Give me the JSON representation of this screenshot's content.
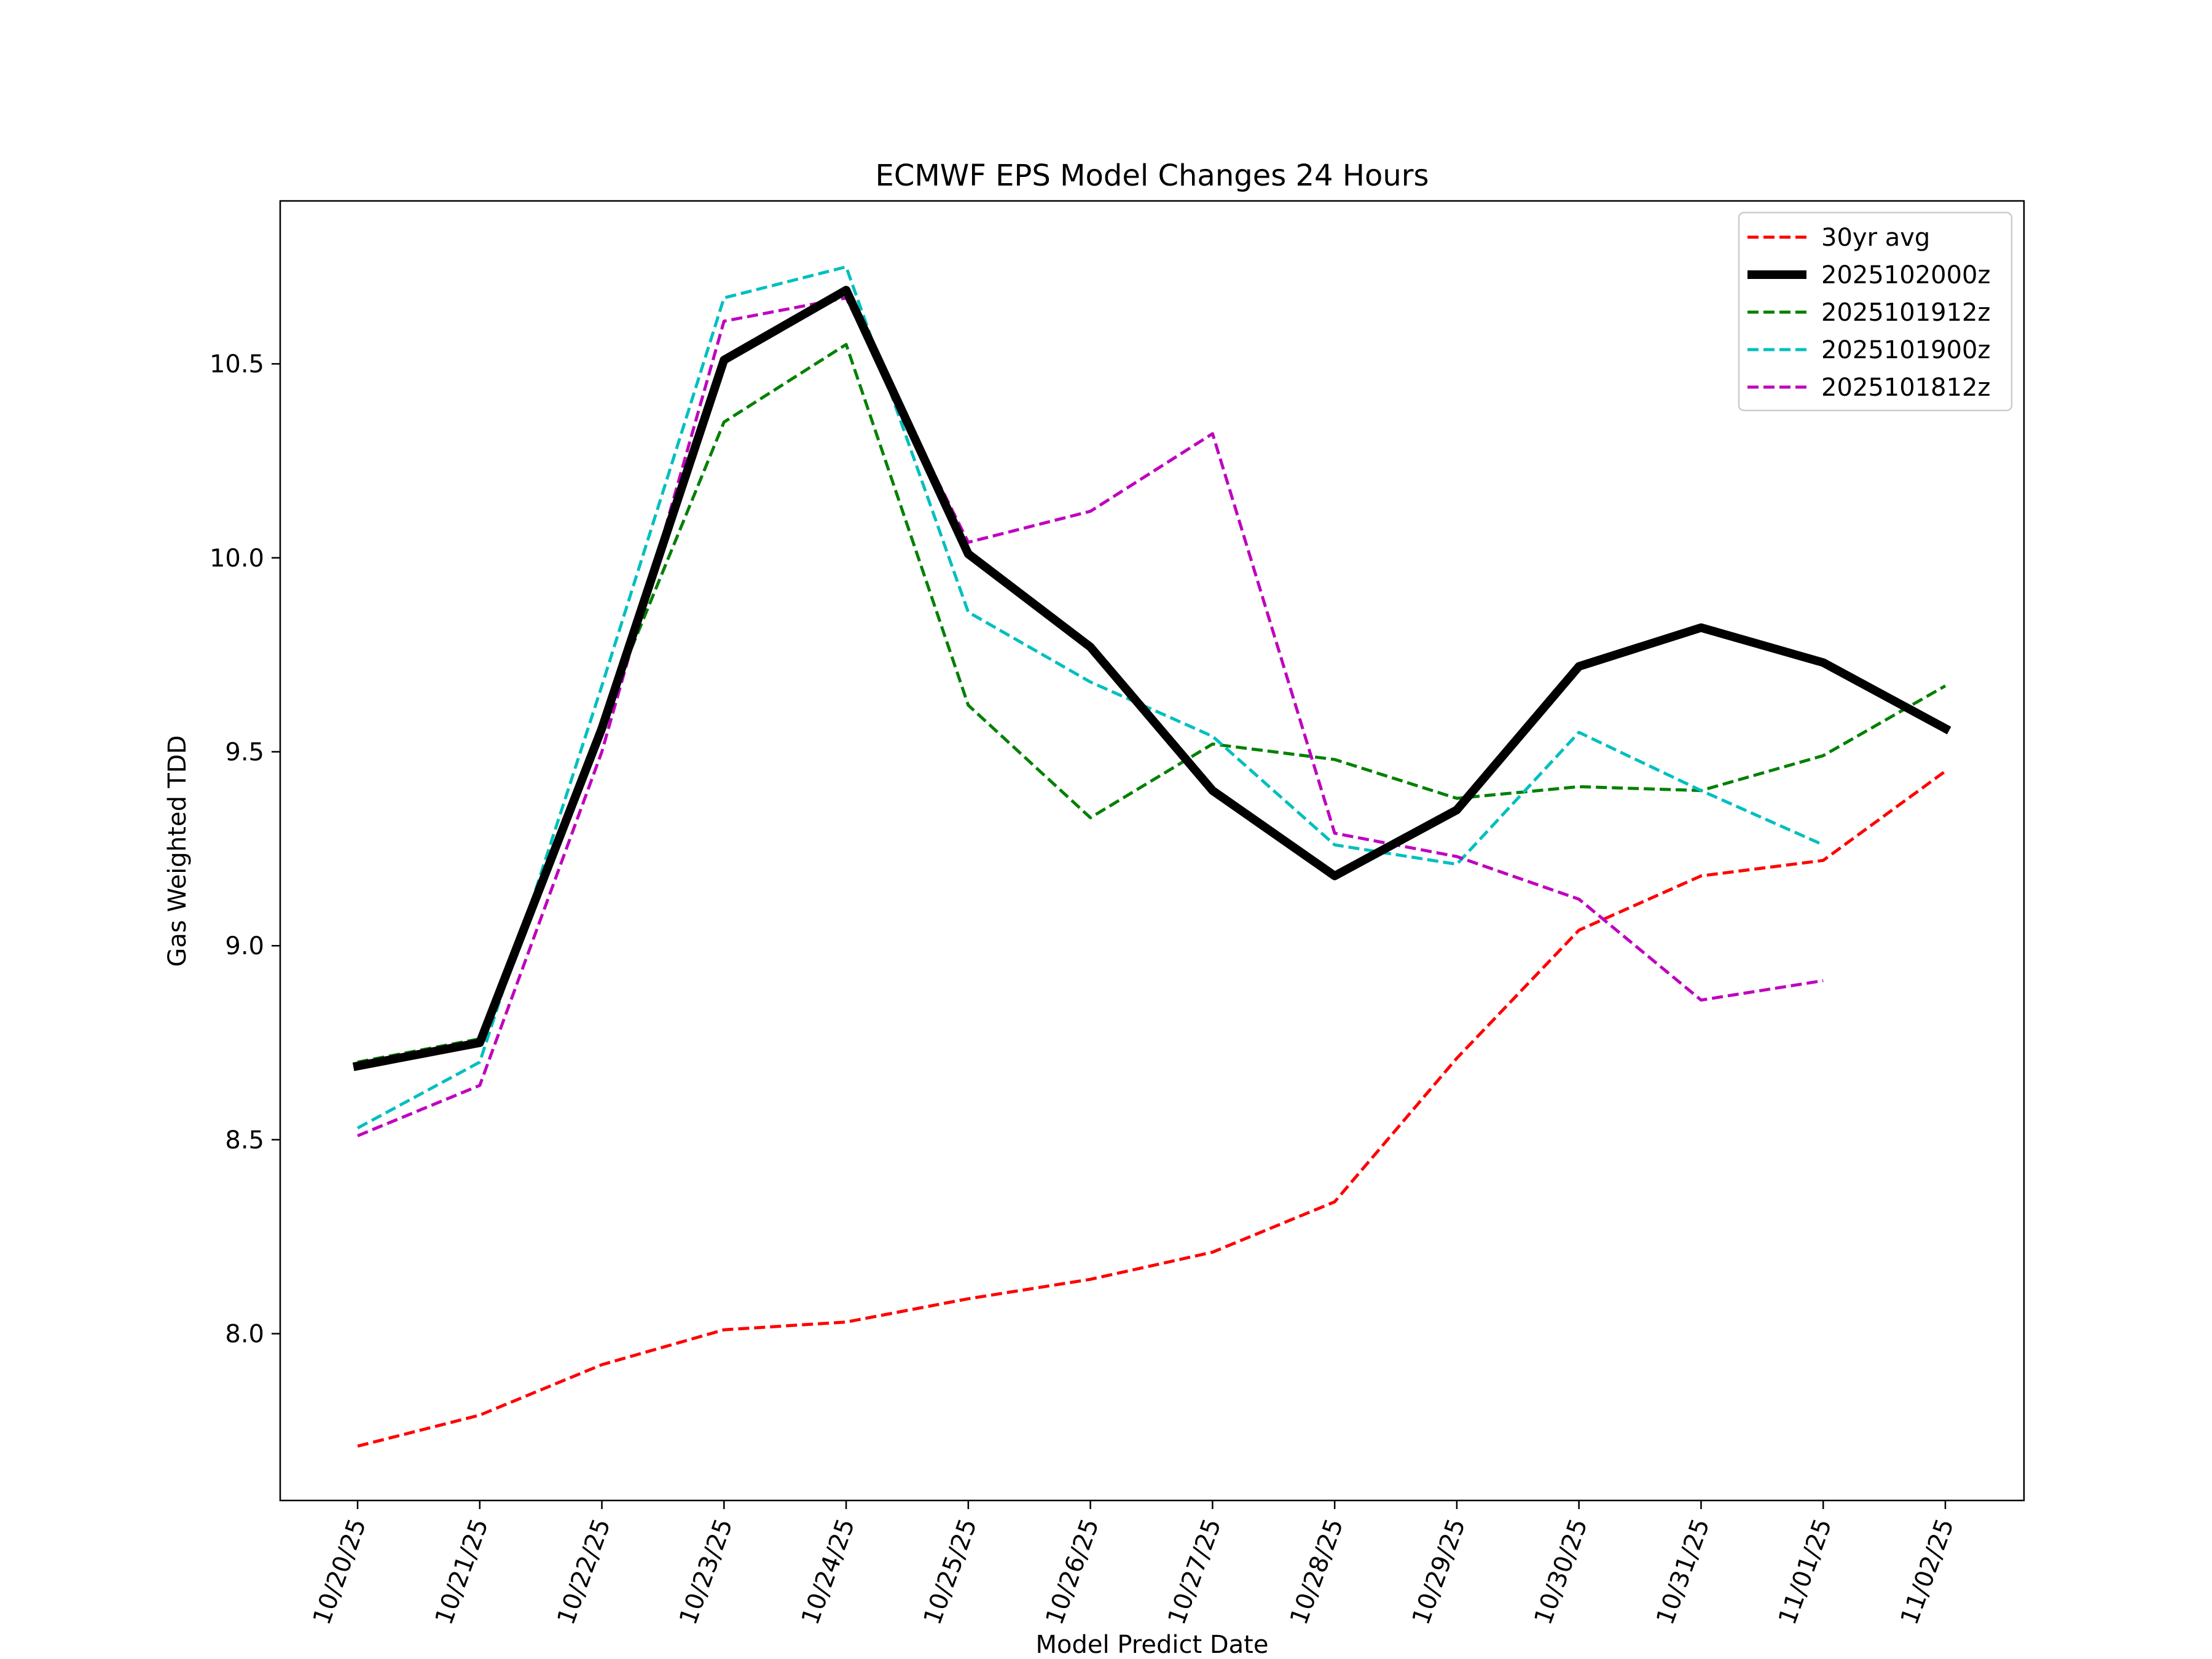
{
  "chart_data": {
    "type": "line",
    "title": "ECMWF EPS Model Changes 24 Hours",
    "xlabel": "Model Predict Date",
    "ylabel": "Gas Weighted TDD",
    "categories": [
      "10/20/25",
      "10/21/25",
      "10/22/25",
      "10/23/25",
      "10/24/25",
      "10/25/25",
      "10/26/25",
      "10/27/25",
      "10/28/25",
      "10/29/25",
      "10/30/25",
      "10/31/25",
      "11/01/25",
      "11/02/25"
    ],
    "yticks": [
      "8.0",
      "8.5",
      "9.0",
      "9.5",
      "10.0",
      "10.5"
    ],
    "ylim": [
      7.57,
      10.92
    ],
    "grid": false,
    "legend_position": "top-right",
    "series": [
      {
        "name": "30yr avg",
        "color": "#ff0000",
        "style": "dashed",
        "values": [
          7.71,
          7.79,
          7.92,
          8.01,
          8.03,
          8.09,
          8.14,
          8.21,
          8.34,
          8.71,
          9.04,
          9.18,
          9.22,
          9.45
        ]
      },
      {
        "name": "2025102000z",
        "color": "#000000",
        "style": "solid-thick",
        "values": [
          8.69,
          8.75,
          9.56,
          10.51,
          10.69,
          10.01,
          9.77,
          9.4,
          9.18,
          9.35,
          9.72,
          9.82,
          9.73,
          9.56
        ]
      },
      {
        "name": "2025101912z",
        "color": "#008000",
        "style": "dashed",
        "values": [
          8.7,
          8.76,
          9.58,
          10.35,
          10.55,
          9.62,
          9.33,
          9.52,
          9.48,
          9.38,
          9.41,
          9.4,
          9.49,
          9.67
        ]
      },
      {
        "name": "2025101900z",
        "color": "#00bfbf",
        "style": "dashed",
        "values": [
          8.53,
          8.7,
          9.67,
          10.67,
          10.75,
          9.86,
          9.68,
          9.54,
          9.26,
          9.21,
          9.55,
          9.4,
          9.26,
          null
        ]
      },
      {
        "name": "2025101812z",
        "color": "#bf00bf",
        "style": "dashed",
        "values": [
          8.51,
          8.64,
          9.5,
          10.61,
          10.67,
          10.04,
          10.12,
          10.32,
          9.29,
          9.23,
          9.12,
          8.86,
          8.91,
          null
        ]
      }
    ]
  }
}
